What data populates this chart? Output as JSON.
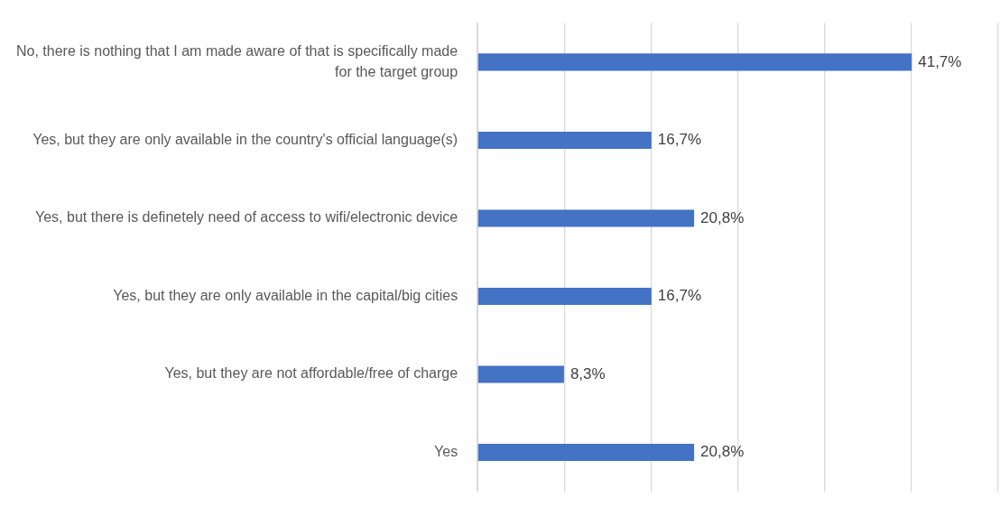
{
  "chart_data": {
    "type": "bar",
    "orientation": "horizontal",
    "categories": [
      "No, there is nothing that I am made aware of that is specifically made for the target group",
      "Yes, but they are only available in the country's official language(s)",
      "Yes, but there is definetely need of access to wifi/electronic device",
      "Yes, but they are only available in the capital/big cities",
      "Yes, but they are not affordable/free of charge",
      "Yes"
    ],
    "values": [
      41.7,
      16.7,
      20.8,
      16.7,
      8.3,
      20.8
    ],
    "value_labels": [
      "41,7%",
      "16,7%",
      "20,8%",
      "16,7%",
      "8,3%",
      "20,8%"
    ],
    "color": "#4472c4",
    "xlim": [
      0,
      50
    ],
    "xticks": [
      {
        "value": 0,
        "label": null
      },
      {
        "value": 8.33,
        "label": null
      },
      {
        "value": 16.67,
        "label": null
      },
      {
        "value": 25,
        "label": null
      },
      {
        "value": 33.33,
        "label": null
      },
      {
        "value": 41.67,
        "label": null
      },
      {
        "value": 50,
        "label": null
      }
    ],
    "grid": "x",
    "tick_labels": "y"
  }
}
